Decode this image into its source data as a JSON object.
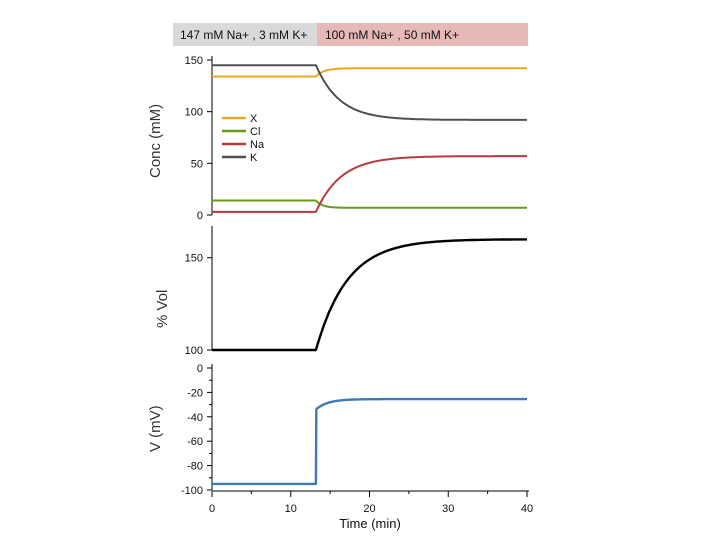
{
  "colors": {
    "condition1_bg": "#d9d9d9",
    "condition2_bg": "#e6b8b8",
    "X": "#e8a820",
    "Cl": "#6a9a18",
    "Na": "#b83a3e",
    "K": "#505050",
    "volume": "#000000",
    "voltage": "#3d7ab5"
  },
  "conditions": [
    {
      "label": "147 mM Na+ , 3 mM K+"
    },
    {
      "label": "100 mM Na+ , 50 mM K+"
    }
  ],
  "chart_data": [
    {
      "type": "line",
      "panel": "concentration",
      "ylabel": "Conc (mM)",
      "ylim": [
        0,
        150
      ],
      "yticks": [
        0,
        50,
        100,
        150
      ],
      "xlim": [
        0,
        40
      ],
      "switch_time": 13.2,
      "legend": [
        "X",
        "Cl",
        "Na",
        "K"
      ],
      "series": [
        {
          "name": "X",
          "before": 134,
          "after": 142,
          "tau": 1.0
        },
        {
          "name": "Cl",
          "before": 14,
          "after": 7,
          "tau": 0.8
        },
        {
          "name": "Na",
          "before": 3,
          "after": 57,
          "tau": 3.2
        },
        {
          "name": "K",
          "before": 145,
          "after": 92,
          "tau": 3.0
        }
      ]
    },
    {
      "type": "line",
      "panel": "volume",
      "ylabel": "% Vol",
      "ylim": [
        100,
        165
      ],
      "yticks": [
        100,
        150
      ],
      "xlim": [
        0,
        40
      ],
      "switch_time": 13.2,
      "series": [
        {
          "name": "Volume",
          "before": 100,
          "after": 160,
          "tau": 4.0
        }
      ]
    },
    {
      "type": "line",
      "panel": "membrane-voltage",
      "ylabel": "V (mV)",
      "ylim": [
        -100,
        0
      ],
      "yticks": [
        0,
        -20,
        -40,
        -60,
        -80,
        -100
      ],
      "xlim": [
        0,
        40
      ],
      "xticks": [
        0,
        10,
        20,
        30,
        40
      ],
      "xlabel": "Time (min)",
      "switch_time": 13.2,
      "series": [
        {
          "name": "V",
          "before": -95,
          "jump": -34,
          "after": -25.5,
          "tau": 1.5
        }
      ]
    }
  ]
}
